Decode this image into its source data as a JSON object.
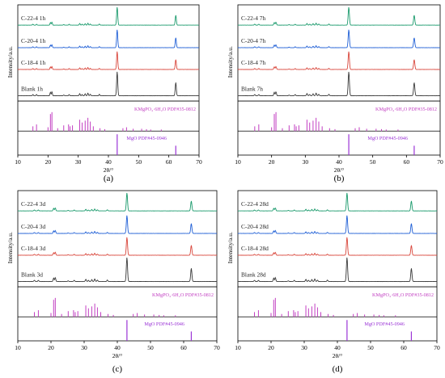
{
  "chart_data": [
    {
      "type": "line",
      "panel_label": "(a)",
      "xlabel": "2θ/°",
      "ylabel": "Intensity/a.u.",
      "xlim": [
        10,
        70
      ],
      "xticks": [
        10,
        20,
        30,
        40,
        50,
        60,
        70
      ],
      "series": [
        {
          "name": "C-22-4 1h",
          "color": "#1a9a6c"
        },
        {
          "name": "C-20-4 1h",
          "color": "#1f5fd6"
        },
        {
          "name": "C-18-4 1h",
          "color": "#d9463b"
        },
        {
          "name": "Blank 1h",
          "color": "#3a3a3a"
        }
      ],
      "references": [
        {
          "name": "KMgPO₄·6H₂O PDF#35-0812",
          "color": "#c23fc2"
        },
        {
          "name": "MgO PDF#45-0946",
          "color": "#9b35d6"
        }
      ]
    },
    {
      "type": "line",
      "panel_label": "(b)",
      "xlabel": "2θ/°",
      "ylabel": "Intensity/a.u.",
      "xlim": [
        10,
        70
      ],
      "xticks": [
        10,
        20,
        30,
        40,
        50,
        60,
        70
      ],
      "series": [
        {
          "name": "C-22-4 7h",
          "color": "#1a9a6c"
        },
        {
          "name": "C-20-4 7h",
          "color": "#1f5fd6"
        },
        {
          "name": "C-18-4 7h",
          "color": "#d9463b"
        },
        {
          "name": "Blank 7h",
          "color": "#3a3a3a"
        }
      ],
      "references": [
        {
          "name": "KMgPO₄·6H₂O PDF#35-0812",
          "color": "#c23fc2"
        },
        {
          "name": "MgO PDF#45-0946",
          "color": "#9b35d6"
        }
      ]
    },
    {
      "type": "line",
      "panel_label": "(c)",
      "xlabel": "2θ/°",
      "ylabel": "Intensity/a.u.",
      "xlim": [
        10,
        70
      ],
      "xticks": [
        10,
        20,
        30,
        40,
        50,
        60,
        70
      ],
      "series": [
        {
          "name": "C-22-4 3d",
          "color": "#1a9a6c"
        },
        {
          "name": "C-20-4 3d",
          "color": "#1f5fd6"
        },
        {
          "name": "C-18-4 3d",
          "color": "#d9463b"
        },
        {
          "name": "Blank 3d",
          "color": "#3a3a3a"
        }
      ],
      "references": [
        {
          "name": "KMgPO₄·6H₂O PDF#35-0812",
          "color": "#c23fc2"
        },
        {
          "name": "MgO PDF#45-0946",
          "color": "#9b35d6"
        }
      ]
    },
    {
      "type": "line",
      "panel_label": "(d)",
      "xlabel": "2θ/°",
      "ylabel": "Intensity/a.u.",
      "xlim": [
        10,
        70
      ],
      "xticks": [
        10,
        20,
        30,
        40,
        50,
        60,
        70
      ],
      "series": [
        {
          "name": "C-22-4 28d",
          "color": "#1a9a6c"
        },
        {
          "name": "C-20-4 28d",
          "color": "#1f5fd6"
        },
        {
          "name": "C-18-4 28d",
          "color": "#d9463b"
        },
        {
          "name": "Blank 28d",
          "color": "#3a3a3a"
        }
      ],
      "references": [
        {
          "name": "KMgPO₄·6H₂O PDF#35-0812",
          "color": "#c23fc2"
        },
        {
          "name": "MgO PDF#45-0946",
          "color": "#9b35d6"
        }
      ]
    }
  ],
  "pattern": {
    "peaks": [
      [
        15.0,
        0.05
      ],
      [
        16.2,
        0.05
      ],
      [
        20.8,
        0.14
      ],
      [
        21.3,
        0.16
      ],
      [
        25.2,
        0.03
      ],
      [
        27.0,
        0.05
      ],
      [
        30.5,
        0.09
      ],
      [
        31.3,
        0.05
      ],
      [
        32.3,
        0.08
      ],
      [
        33.2,
        0.11
      ],
      [
        34.0,
        0.06
      ],
      [
        37.0,
        0.06
      ],
      [
        42.9,
        1.0
      ],
      [
        62.3,
        0.55
      ]
    ],
    "kmgpo4_lines": [
      [
        15.0,
        0.25
      ],
      [
        16.2,
        0.35
      ],
      [
        20.0,
        0.2
      ],
      [
        20.8,
        0.9
      ],
      [
        21.3,
        1.0
      ],
      [
        23.2,
        0.15
      ],
      [
        25.2,
        0.3
      ],
      [
        26.8,
        0.35
      ],
      [
        27.3,
        0.25
      ],
      [
        28.1,
        0.3
      ],
      [
        30.5,
        0.6
      ],
      [
        31.3,
        0.45
      ],
      [
        32.3,
        0.55
      ],
      [
        33.2,
        0.7
      ],
      [
        34.0,
        0.5
      ],
      [
        35.0,
        0.25
      ],
      [
        37.2,
        0.15
      ],
      [
        38.8,
        0.1
      ],
      [
        44.8,
        0.15
      ],
      [
        46.0,
        0.2
      ],
      [
        48.2,
        0.12
      ],
      [
        51.0,
        0.12
      ],
      [
        52.6,
        0.1
      ],
      [
        54.0,
        0.08
      ],
      [
        57.5,
        0.08
      ]
    ],
    "mgo_lines": [
      [
        42.9,
        1.0
      ],
      [
        62.3,
        0.45
      ]
    ]
  }
}
